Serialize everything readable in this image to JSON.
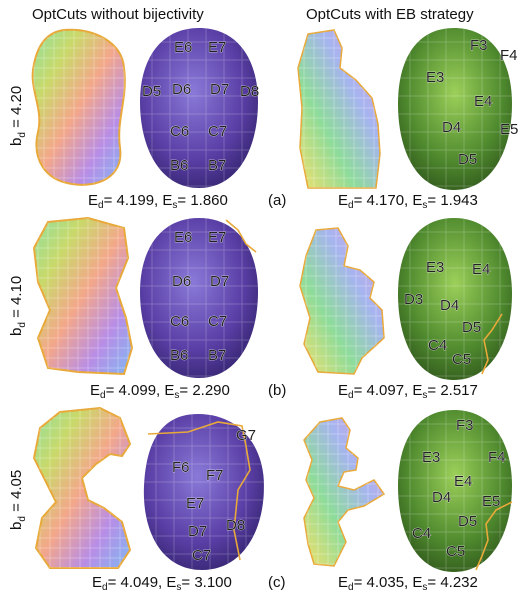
{
  "columns": {
    "left": "OptCuts without bijectivity",
    "right": "OptCuts with EB strategy"
  },
  "rows": [
    {
      "id": "(a)",
      "bd_value": "= 4.20",
      "left": {
        "ed": "= 4.199,",
        "es": "= 1.860",
        "labels": [
          "E6",
          "E7",
          "D5",
          "D6",
          "D7",
          "D8",
          "C6",
          "C7",
          "B6",
          "B7"
        ]
      },
      "right": {
        "ed": "= 4.170,",
        "es": "= 1.943",
        "labels": [
          "F3",
          "F4",
          "E3",
          "E4",
          "E5",
          "D4",
          "D5"
        ]
      }
    },
    {
      "id": "(b)",
      "bd_value": "= 4.10",
      "left": {
        "ed": "= 4.099,",
        "es": "= 2.290",
        "labels": [
          "E6",
          "E7",
          "D6",
          "D7",
          "C6",
          "C7",
          "B6",
          "B7"
        ]
      },
      "right": {
        "ed": "= 4.097,",
        "es": "= 2.517",
        "labels": [
          "E3",
          "E4",
          "D3",
          "D4",
          "D5",
          "C4",
          "C5"
        ]
      }
    },
    {
      "id": "(c)",
      "bd_value": "= 4.05",
      "left": {
        "ed": "= 4.049,",
        "es": "= 3.100",
        "labels": [
          "F6",
          "F7",
          "E7",
          "D7",
          "D8",
          "C7",
          "G7"
        ]
      },
      "right": {
        "ed": "= 4.035,",
        "es": "= 4.232",
        "labels": [
          "F3",
          "F4",
          "E3",
          "E4",
          "E5",
          "D4",
          "D5",
          "C4",
          "C5"
        ]
      }
    }
  ],
  "symbols": {
    "b": "b",
    "b_sub": "d",
    "e": "E",
    "d_sub": "d",
    "s_sub": "s"
  },
  "colors": {
    "uv_boundary": "#e8a93a",
    "left_head": "#5a3fa6",
    "right_head": "#4f8a2e",
    "cut_line": "#e8a93a"
  }
}
